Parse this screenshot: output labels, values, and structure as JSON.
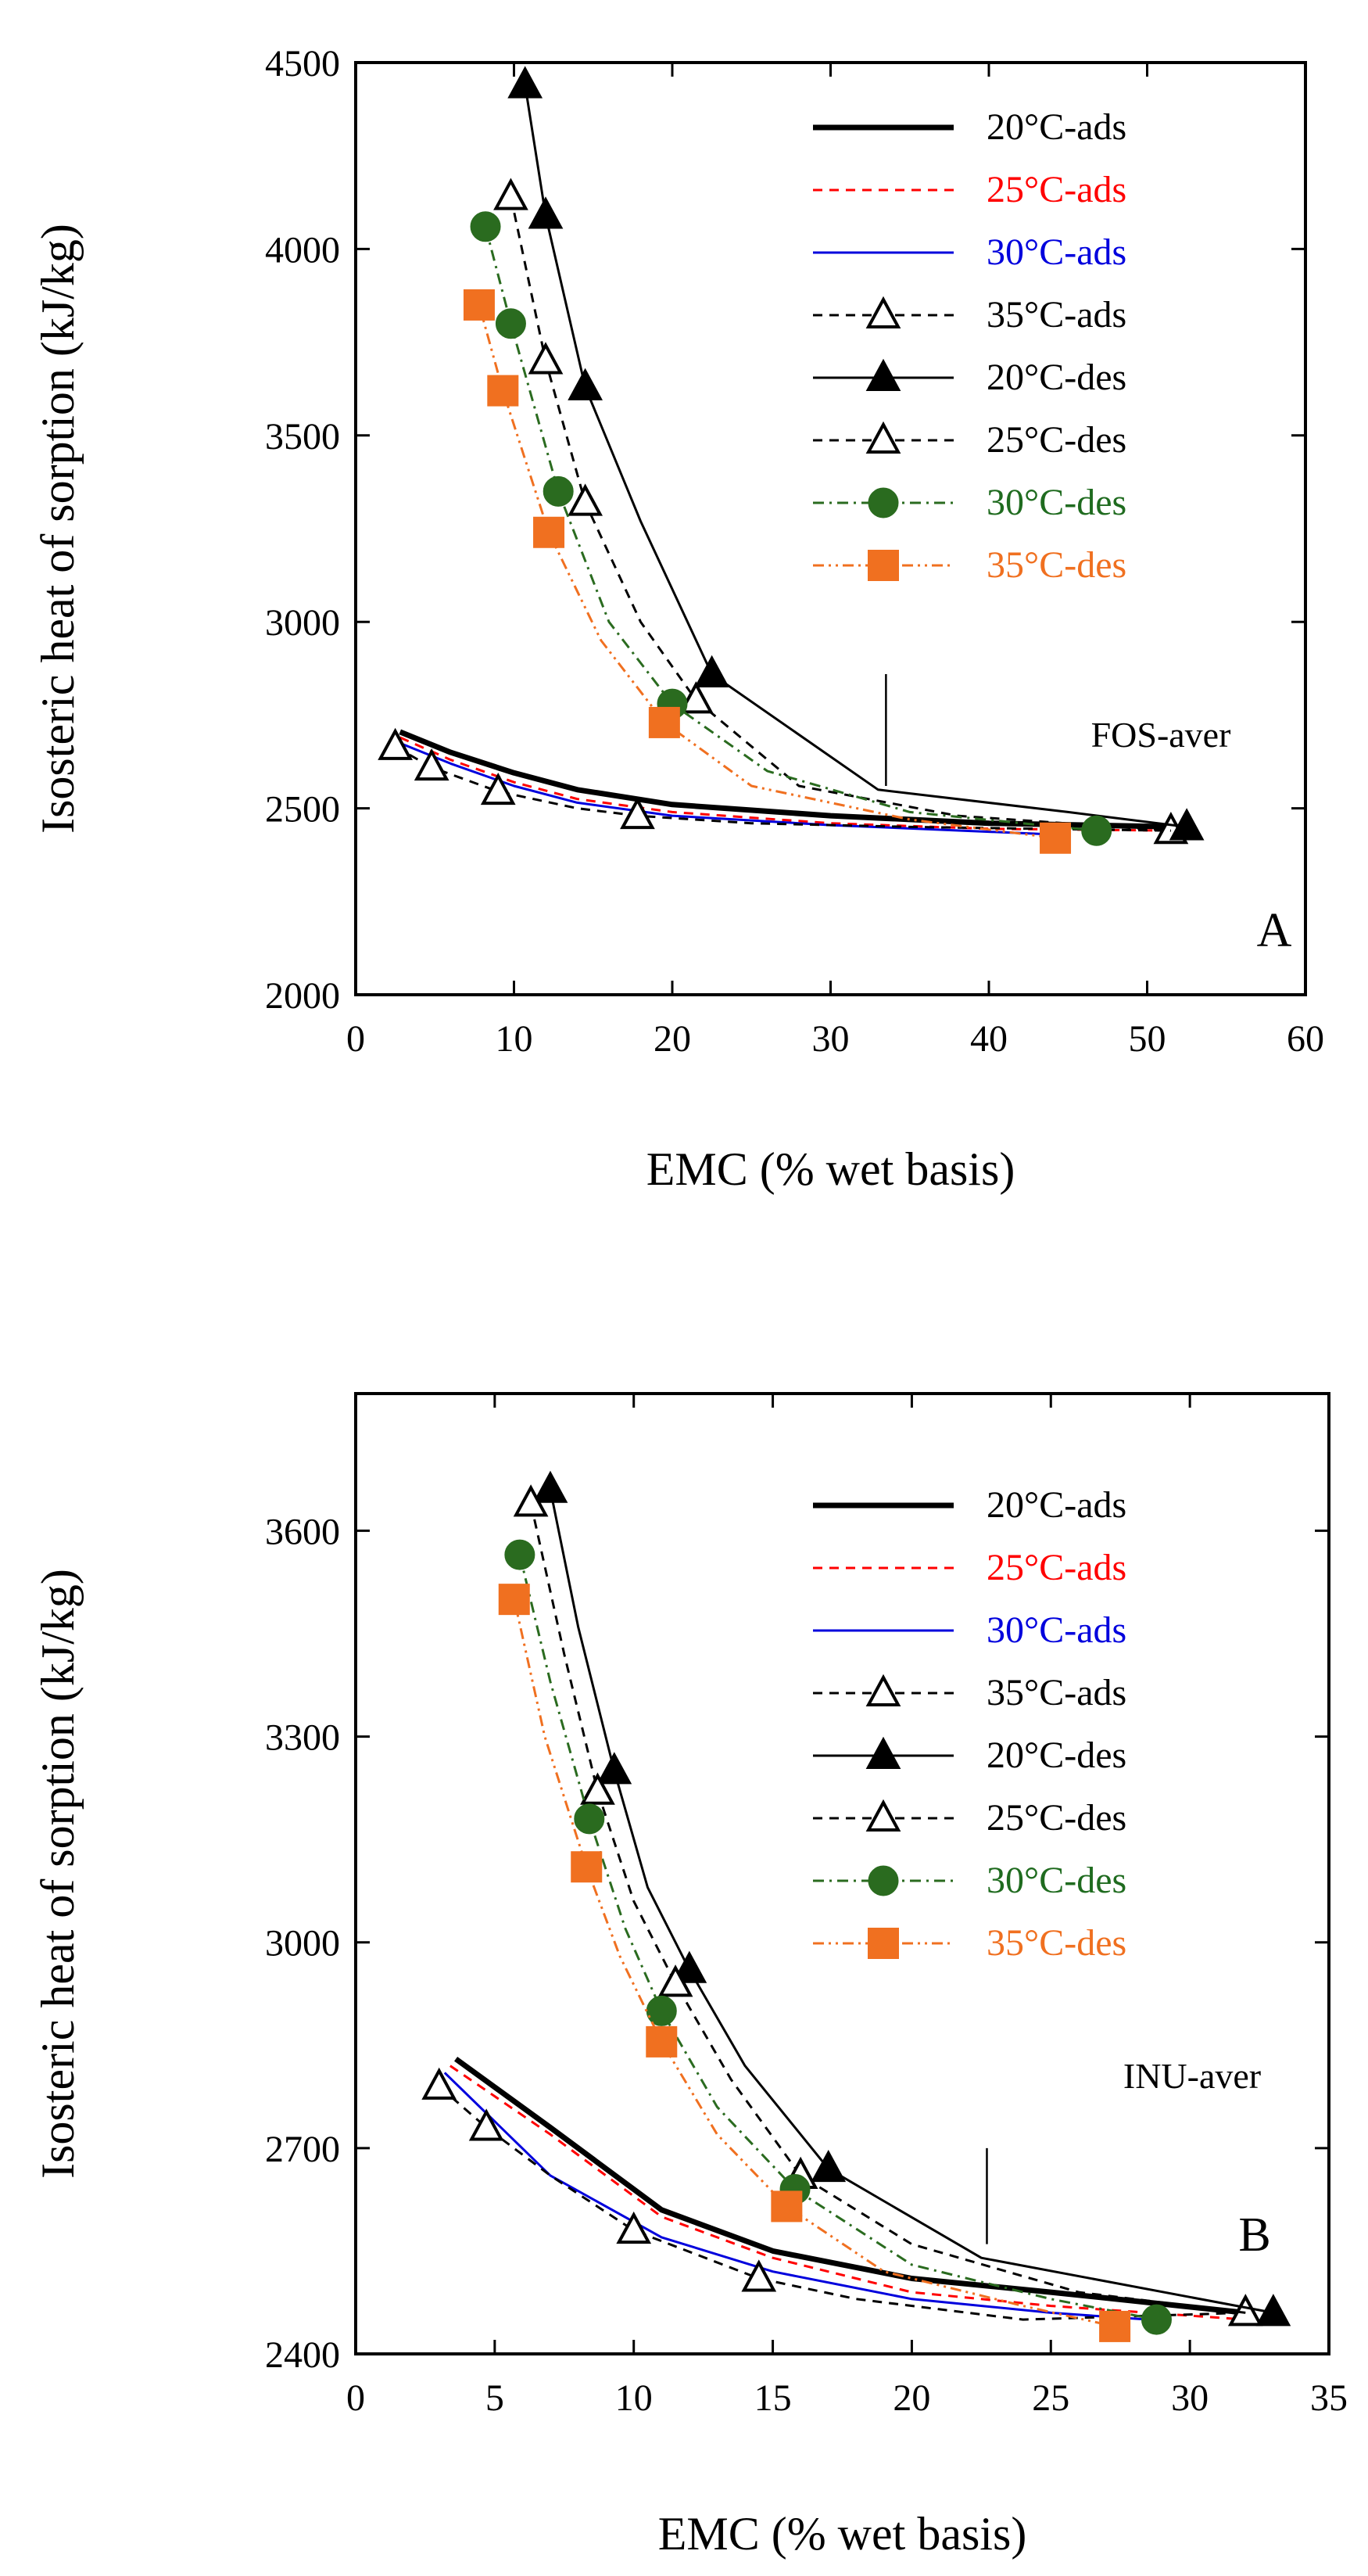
{
  "chart_data": [
    {
      "type": "line",
      "panel_label": "A",
      "annotation": "FOS-aver",
      "xlabel": "EMC (% wet basis)",
      "ylabel": "Isosteric heat of sorption (kJ/kg)",
      "xlim": [
        0,
        60
      ],
      "ylim": [
        2000,
        4500
      ],
      "xticks": [
        "0",
        "10",
        "20",
        "30",
        "40",
        "50",
        "60"
      ],
      "yticks": [
        "2000",
        "2500",
        "3000",
        "3500",
        "4000",
        "4500"
      ],
      "grid": false,
      "legend_position": "top-right",
      "vertical_marker": {
        "x": 33.5,
        "y": [
          2560,
          2860
        ]
      },
      "series": [
        {
          "name": "20°C-ads",
          "color": "#000000",
          "width": 7,
          "dash": "",
          "marker": "none",
          "label_color": "#000000",
          "x": [
            2.8,
            6,
            10,
            14,
            20,
            30,
            40,
            52
          ],
          "y": [
            2705,
            2650,
            2595,
            2550,
            2510,
            2480,
            2460,
            2450
          ],
          "mx": [],
          "my": []
        },
        {
          "name": "25°C-ads",
          "color": "#ff0000",
          "width": 3,
          "dash": "12 9",
          "marker": "none",
          "label_color": "#ff0000",
          "x": [
            2.8,
            6,
            10,
            14,
            20,
            30,
            40,
            52
          ],
          "y": [
            2690,
            2630,
            2570,
            2525,
            2490,
            2460,
            2445,
            2440
          ],
          "mx": [],
          "my": []
        },
        {
          "name": "30°C-ads",
          "color": "#0000dd",
          "width": 3,
          "dash": "",
          "marker": "none",
          "label_color": "#0000dd",
          "x": [
            2.5,
            6,
            10,
            14,
            20,
            30,
            44
          ],
          "y": [
            2680,
            2620,
            2560,
            2515,
            2480,
            2455,
            2430
          ],
          "mx": [],
          "my": []
        },
        {
          "name": "35°C-ads",
          "color": "#000000",
          "width": 3,
          "dash": "12 9",
          "marker": "open-triangle",
          "label_color": "#000000",
          "x": [
            2.5,
            4.8,
            9,
            14,
            17.8,
            25,
            35,
            51.5
          ],
          "y": [
            2665,
            2610,
            2545,
            2500,
            2480,
            2460,
            2450,
            2440
          ],
          "mx": [
            2.5,
            4.8,
            9,
            17.8,
            51.5
          ],
          "my": [
            2665,
            2610,
            2545,
            2480,
            2440
          ]
        },
        {
          "name": "20°C-des",
          "color": "#000000",
          "width": 3,
          "dash": "",
          "marker": "filled-triangle",
          "label_color": "#000000",
          "x": [
            10.7,
            12,
            14.5,
            18,
            22.5,
            33,
            45,
            52.5
          ],
          "y": [
            4440,
            4090,
            3630,
            3270,
            2860,
            2550,
            2490,
            2450
          ],
          "mx": [
            10.7,
            12,
            14.5,
            22.5,
            52.5
          ],
          "my": [
            4440,
            4090,
            3630,
            2860,
            2450
          ]
        },
        {
          "name": "25°C-des",
          "color": "#000000",
          "width": 3,
          "dash": "12 9",
          "marker": "open-triangle",
          "label_color": "#000000",
          "x": [
            9.8,
            12,
            14.5,
            18,
            21.5,
            28,
            38,
            51.5
          ],
          "y": [
            4140,
            3700,
            3320,
            3000,
            2790,
            2560,
            2480,
            2440
          ],
          "mx": [
            9.8,
            12,
            14.5,
            21.5
          ],
          "my": [
            4140,
            3700,
            3320,
            2790
          ]
        },
        {
          "name": "30°C-des",
          "color": "#2a6b1f",
          "width": 3,
          "dash": "14 7 3 7",
          "marker": "filled-circle",
          "label_color": "#1f6b1f",
          "x": [
            8.2,
            9.8,
            12.8,
            16,
            20,
            26,
            35,
            46.8
          ],
          "y": [
            4060,
            3800,
            3350,
            3000,
            2780,
            2600,
            2490,
            2440
          ],
          "mx": [
            8.2,
            9.8,
            12.8,
            20,
            46.8
          ],
          "my": [
            4060,
            3800,
            3350,
            2780,
            2440
          ]
        },
        {
          "name": "35°C-des",
          "color": "#f07020",
          "width": 3,
          "dash": "14 6 3 6 3 6",
          "marker": "filled-square",
          "label_color": "#f07020",
          "x": [
            7.8,
            9.3,
            12.2,
            15.5,
            19.5,
            25,
            35,
            44.2
          ],
          "y": [
            3850,
            3620,
            3240,
            2950,
            2730,
            2560,
            2470,
            2420
          ],
          "mx": [
            7.8,
            9.3,
            12.2,
            19.5,
            44.2
          ],
          "my": [
            3850,
            3620,
            3240,
            2730,
            2420
          ]
        }
      ]
    },
    {
      "type": "line",
      "panel_label": "B",
      "annotation": "INU-aver",
      "xlabel": "EMC (% wet basis)",
      "ylabel": "Isosteric heat of sorption (kJ/kg)",
      "xlim": [
        0,
        35
      ],
      "ylim": [
        2400,
        3800
      ],
      "xticks": [
        "0",
        "5",
        "10",
        "15",
        "20",
        "25",
        "30",
        "35"
      ],
      "yticks": [
        "2400",
        "2700",
        "3000",
        "3300",
        "3600"
      ],
      "grid": false,
      "legend_position": "top-right",
      "vertical_marker": {
        "x": 22.7,
        "y": [
          2560,
          2700
        ]
      },
      "series": [
        {
          "name": "20°C-ads",
          "color": "#000000",
          "width": 7,
          "dash": "",
          "marker": "none",
          "label_color": "#000000",
          "x": [
            3.6,
            7,
            11,
            15,
            20,
            25,
            32
          ],
          "y": [
            2830,
            2730,
            2610,
            2550,
            2510,
            2490,
            2460
          ],
          "mx": [],
          "my": []
        },
        {
          "name": "25°C-ads",
          "color": "#ff0000",
          "width": 3,
          "dash": "12 9",
          "marker": "none",
          "label_color": "#ff0000",
          "x": [
            3.4,
            7,
            11,
            15,
            20,
            25,
            32
          ],
          "y": [
            2820,
            2720,
            2600,
            2540,
            2490,
            2470,
            2450
          ],
          "mx": [],
          "my": []
        },
        {
          "name": "30°C-ads",
          "color": "#0000dd",
          "width": 3,
          "dash": "",
          "marker": "none",
          "label_color": "#0000dd",
          "x": [
            3.2,
            7,
            11,
            15,
            20,
            25,
            28.5
          ],
          "y": [
            2810,
            2660,
            2570,
            2520,
            2480,
            2460,
            2450
          ],
          "mx": [],
          "my": []
        },
        {
          "name": "35°C-ads",
          "color": "#000000",
          "width": 3,
          "dash": "12 9",
          "marker": "open-triangle",
          "label_color": "#000000",
          "x": [
            3,
            4.7,
            7,
            10,
            14.5,
            18,
            24,
            32
          ],
          "y": [
            2790,
            2730,
            2660,
            2580,
            2510,
            2480,
            2450,
            2460
          ],
          "mx": [
            3,
            4.7,
            10,
            14.5,
            32
          ],
          "my": [
            2790,
            2730,
            2580,
            2510,
            2460
          ]
        },
        {
          "name": "20°C-des",
          "color": "#000000",
          "width": 3,
          "dash": "",
          "marker": "filled-triangle",
          "label_color": "#000000",
          "x": [
            7,
            8,
            9.3,
            10.5,
            12,
            14,
            17,
            22.5,
            33
          ],
          "y": [
            3660,
            3460,
            3250,
            3080,
            2960,
            2820,
            2670,
            2540,
            2460
          ],
          "mx": [
            7,
            9.3,
            12,
            17,
            33
          ],
          "my": [
            3660,
            3250,
            2960,
            2670,
            2460
          ]
        },
        {
          "name": "25°C-des",
          "color": "#000000",
          "width": 3,
          "dash": "12 9",
          "marker": "open-triangle",
          "label_color": "#000000",
          "x": [
            6.3,
            7.5,
            8.7,
            10,
            11.5,
            13.5,
            16,
            20,
            26,
            32
          ],
          "y": [
            3640,
            3420,
            3220,
            3060,
            2940,
            2800,
            2660,
            2560,
            2490,
            2460
          ],
          "mx": [
            6.3,
            8.7,
            11.5,
            16
          ],
          "my": [
            3640,
            3220,
            2940,
            2660
          ]
        },
        {
          "name": "30°C-des",
          "color": "#2a6b1f",
          "width": 3,
          "dash": "14 7 3 7",
          "marker": "filled-circle",
          "label_color": "#1f6b1f",
          "x": [
            5.9,
            7,
            8.4,
            9.7,
            11,
            13,
            15.8,
            20,
            25,
            28.8
          ],
          "y": [
            3565,
            3380,
            3180,
            3020,
            2900,
            2760,
            2640,
            2530,
            2480,
            2450
          ],
          "mx": [
            5.9,
            8.4,
            11,
            15.8,
            28.8
          ],
          "my": [
            3565,
            3180,
            2900,
            2640,
            2450
          ]
        },
        {
          "name": "35°C-des",
          "color": "#f07020",
          "width": 3,
          "dash": "14 6 3 6 3 6",
          "marker": "filled-square",
          "label_color": "#f07020",
          "x": [
            5.7,
            6.8,
            8.3,
            9.5,
            11,
            13,
            15.5,
            19,
            24,
            27.3
          ],
          "y": [
            3500,
            3300,
            3110,
            2980,
            2855,
            2720,
            2615,
            2520,
            2470,
            2440
          ],
          "mx": [
            5.7,
            8.3,
            11,
            15.5,
            27.3
          ],
          "my": [
            3500,
            3110,
            2855,
            2615,
            2440
          ]
        }
      ]
    }
  ]
}
